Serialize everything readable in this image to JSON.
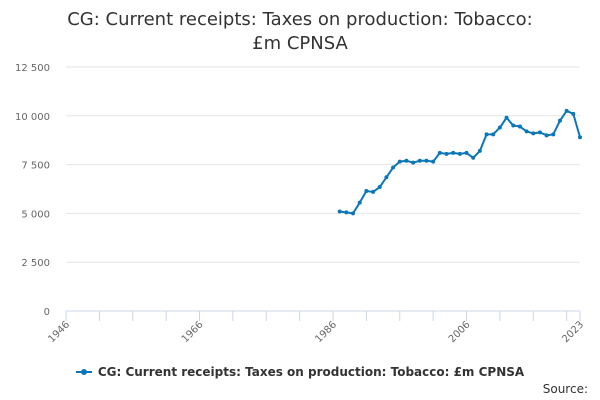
{
  "chart_data": {
    "type": "line",
    "title": "CG: Current receipts: Taxes on production: Tobacco: £m CPNSA",
    "xlabel": "",
    "ylabel": "",
    "xlim": [
      1946,
      2023
    ],
    "ylim": [
      0,
      12500
    ],
    "x_ticks": [
      1946,
      1966,
      1986,
      2006,
      2023
    ],
    "x_tick_labels": [
      "1946",
      "1966",
      "1986",
      "2006",
      "2023"
    ],
    "y_ticks": [
      0,
      2500,
      5000,
      7500,
      10000,
      12500
    ],
    "y_tick_labels": [
      "0",
      "2 500",
      "5 000",
      "7 500",
      "10 000",
      "12 500"
    ],
    "grid": "horizontal",
    "legend_position": "bottom",
    "series": [
      {
        "name": "CG: Current receipts: Taxes on production: Tobacco: £m CPNSA",
        "color": "#0b77b6",
        "x": [
          1987,
          1988,
          1989,
          1990,
          1991,
          1992,
          1993,
          1994,
          1995,
          1996,
          1997,
          1998,
          1999,
          2000,
          2001,
          2002,
          2003,
          2004,
          2005,
          2006,
          2007,
          2008,
          2009,
          2010,
          2011,
          2012,
          2013,
          2014,
          2015,
          2016,
          2017,
          2018,
          2019,
          2020,
          2021,
          2022,
          2023
        ],
        "values": [
          5100,
          5050,
          5000,
          5550,
          6150,
          6100,
          6350,
          6850,
          7350,
          7650,
          7700,
          7600,
          7700,
          7700,
          7650,
          8100,
          8050,
          8100,
          8050,
          8100,
          7850,
          8200,
          9050,
          9050,
          9400,
          9900,
          9500,
          9450,
          9200,
          9100,
          9150,
          9000,
          9050,
          9750,
          10250,
          10100,
          8900
        ]
      }
    ]
  },
  "footer": {
    "source_label": "Source:"
  }
}
